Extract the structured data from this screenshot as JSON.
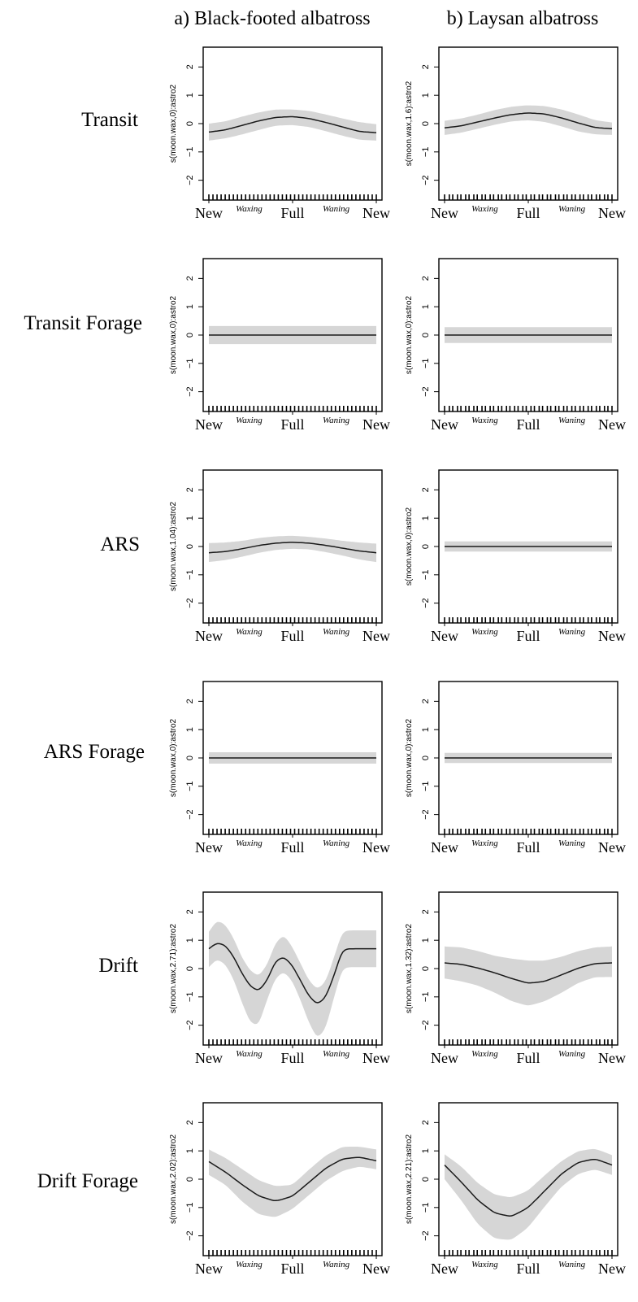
{
  "columns": [
    {
      "label": "a) Black-footed albatross"
    },
    {
      "label": "b) Laysan albatross"
    }
  ],
  "rows": [
    {
      "label": "Transit"
    },
    {
      "label": "Transit Forage"
    },
    {
      "label": "ARS"
    },
    {
      "label": "ARS Forage"
    },
    {
      "label": "Drift"
    },
    {
      "label": "Drift Forage"
    }
  ],
  "axis": {
    "yticks": [
      -2,
      -1,
      0,
      1,
      2
    ],
    "ylim": [
      -2.7,
      2.7
    ],
    "xlim": [
      0,
      1
    ],
    "xticks": [
      {
        "x": 0.0,
        "label": "New"
      },
      {
        "x": 0.5,
        "label": "Full"
      },
      {
        "x": 1.0,
        "label": "New"
      }
    ],
    "phase_labels": [
      {
        "x": 0.24,
        "label": "Waxing"
      },
      {
        "x": 0.76,
        "label": "Waning"
      }
    ]
  },
  "colors": {
    "band": "#d6d6d6",
    "line": "#1a1a1a",
    "frame": "#000000"
  },
  "chart_data": [
    {
      "type": "line",
      "ylabel": "s(moon.wax,0):astro2",
      "x": [
        0,
        0.1,
        0.2,
        0.3,
        0.4,
        0.5,
        0.6,
        0.7,
        0.8,
        0.9,
        1.0
      ],
      "y": [
        -0.3,
        -0.22,
        -0.06,
        0.1,
        0.22,
        0.25,
        0.18,
        0.04,
        -0.12,
        -0.28,
        -0.32
      ],
      "lower": [
        -0.6,
        -0.52,
        -0.38,
        -0.22,
        -0.07,
        -0.05,
        -0.12,
        -0.27,
        -0.43,
        -0.57,
        -0.6
      ],
      "upper": [
        0.0,
        0.08,
        0.25,
        0.4,
        0.5,
        0.5,
        0.45,
        0.32,
        0.18,
        0.05,
        -0.02
      ]
    },
    {
      "type": "line",
      "ylabel": "s(moon.wax,1.6):astro2",
      "x": [
        0,
        0.1,
        0.2,
        0.3,
        0.4,
        0.5,
        0.6,
        0.7,
        0.8,
        0.9,
        1.0
      ],
      "y": [
        -0.15,
        -0.08,
        0.06,
        0.2,
        0.32,
        0.38,
        0.34,
        0.2,
        0.02,
        -0.14,
        -0.18
      ],
      "lower": [
        -0.4,
        -0.32,
        -0.18,
        -0.04,
        0.08,
        0.12,
        0.06,
        -0.1,
        -0.28,
        -0.38,
        -0.4
      ],
      "upper": [
        0.1,
        0.18,
        0.32,
        0.48,
        0.6,
        0.65,
        0.62,
        0.5,
        0.32,
        0.12,
        0.04
      ]
    },
    {
      "type": "line",
      "ylabel": "s(moon.wax,0):astro2",
      "x": [
        0,
        1
      ],
      "y": [
        0,
        0
      ],
      "lower": [
        -0.32,
        -0.32
      ],
      "upper": [
        0.32,
        0.32
      ]
    },
    {
      "type": "line",
      "ylabel": "s(moon.wax,0):astro2",
      "x": [
        0,
        1
      ],
      "y": [
        0,
        0
      ],
      "lower": [
        -0.28,
        -0.28
      ],
      "upper": [
        0.28,
        0.28
      ]
    },
    {
      "type": "line",
      "ylabel": "s(moon.wax,1.04):astro2",
      "x": [
        0,
        0.1,
        0.2,
        0.3,
        0.4,
        0.5,
        0.6,
        0.7,
        0.8,
        0.9,
        1.0
      ],
      "y": [
        -0.22,
        -0.18,
        -0.08,
        0.04,
        0.12,
        0.15,
        0.12,
        0.04,
        -0.06,
        -0.16,
        -0.22
      ],
      "lower": [
        -0.55,
        -0.48,
        -0.36,
        -0.22,
        -0.12,
        -0.08,
        -0.1,
        -0.2,
        -0.32,
        -0.46,
        -0.55
      ],
      "upper": [
        0.12,
        0.14,
        0.2,
        0.3,
        0.36,
        0.38,
        0.34,
        0.28,
        0.2,
        0.14,
        0.1
      ]
    },
    {
      "type": "line",
      "ylabel": "s(moon.wax,0):astro2",
      "x": [
        0,
        1
      ],
      "y": [
        0,
        0
      ],
      "lower": [
        -0.18,
        -0.18
      ],
      "upper": [
        0.18,
        0.18
      ]
    },
    {
      "type": "line",
      "ylabel": "s(moon.wax,0):astro2",
      "x": [
        0,
        1
      ],
      "y": [
        0,
        0
      ],
      "lower": [
        -0.2,
        -0.2
      ],
      "upper": [
        0.2,
        0.2
      ]
    },
    {
      "type": "line",
      "ylabel": "s(moon.wax,0):astro2",
      "x": [
        0,
        1
      ],
      "y": [
        0,
        0
      ],
      "lower": [
        -0.18,
        -0.18
      ],
      "upper": [
        0.18,
        0.18
      ]
    },
    {
      "type": "line",
      "ylabel": "s(moon.wax,2.71):astro2",
      "x": [
        0,
        0.05,
        0.1,
        0.15,
        0.2,
        0.25,
        0.3,
        0.35,
        0.4,
        0.45,
        0.5,
        0.55,
        0.6,
        0.65,
        0.7,
        0.75,
        0.8,
        0.85,
        0.9,
        0.95,
        1.0
      ],
      "y": [
        0.7,
        0.92,
        0.82,
        0.4,
        -0.2,
        -0.65,
        -0.8,
        -0.4,
        0.3,
        0.42,
        0.1,
        -0.45,
        -1.0,
        -1.28,
        -1.0,
        -0.2,
        0.7,
        0.7,
        0.7,
        0.7,
        0.7
      ],
      "lower": [
        0.05,
        0.35,
        0.15,
        -0.4,
        -1.25,
        -1.95,
        -2.0,
        -1.05,
        -0.3,
        -0.1,
        -0.45,
        -1.15,
        -1.95,
        -2.5,
        -2.1,
        -0.95,
        0.05,
        0.05,
        0.05,
        0.05,
        0.05
      ],
      "upper": [
        1.3,
        1.72,
        1.55,
        1.05,
        0.35,
        -0.1,
        -0.28,
        0.15,
        0.95,
        1.2,
        0.75,
        0.15,
        -0.45,
        -0.75,
        -0.45,
        0.45,
        1.35,
        1.35,
        1.35,
        1.35,
        1.35
      ]
    },
    {
      "type": "line",
      "ylabel": "s(moon.wax,1.32):astro2",
      "x": [
        0,
        0.1,
        0.2,
        0.3,
        0.4,
        0.5,
        0.6,
        0.7,
        0.8,
        0.9,
        1.0
      ],
      "y": [
        0.2,
        0.15,
        0.02,
        -0.15,
        -0.35,
        -0.52,
        -0.45,
        -0.22,
        0.02,
        0.18,
        0.2
      ],
      "lower": [
        -0.35,
        -0.45,
        -0.6,
        -0.85,
        -1.15,
        -1.32,
        -1.15,
        -0.85,
        -0.5,
        -0.3,
        -0.3
      ],
      "upper": [
        0.78,
        0.75,
        0.62,
        0.45,
        0.35,
        0.28,
        0.28,
        0.42,
        0.62,
        0.75,
        0.78
      ]
    },
    {
      "type": "line",
      "ylabel": "s(moon.wax,2.02):astro2",
      "x": [
        0,
        0.1,
        0.2,
        0.3,
        0.4,
        0.5,
        0.6,
        0.7,
        0.8,
        0.9,
        1.0
      ],
      "y": [
        0.62,
        0.25,
        -0.2,
        -0.6,
        -0.78,
        -0.6,
        -0.1,
        0.4,
        0.72,
        0.78,
        0.65
      ],
      "lower": [
        0.15,
        -0.2,
        -0.8,
        -1.25,
        -1.35,
        -1.05,
        -0.55,
        -0.05,
        0.3,
        0.45,
        0.35
      ],
      "upper": [
        1.05,
        0.75,
        0.35,
        -0.05,
        -0.25,
        -0.2,
        0.35,
        0.85,
        1.15,
        1.15,
        1.05
      ]
    },
    {
      "type": "line",
      "ylabel": "s(moon.wax,2.21):astro2",
      "x": [
        0,
        0.1,
        0.2,
        0.3,
        0.4,
        0.5,
        0.6,
        0.7,
        0.8,
        0.9,
        1.0
      ],
      "y": [
        0.5,
        -0.1,
        -0.75,
        -1.2,
        -1.32,
        -1.0,
        -0.4,
        0.2,
        0.6,
        0.72,
        0.5
      ],
      "lower": [
        0.0,
        -0.75,
        -1.6,
        -2.1,
        -2.15,
        -1.7,
        -0.95,
        -0.25,
        0.2,
        0.35,
        0.15
      ],
      "upper": [
        0.88,
        0.45,
        -0.15,
        -0.55,
        -0.65,
        -0.4,
        0.15,
        0.65,
        1.0,
        1.08,
        0.85
      ]
    }
  ]
}
